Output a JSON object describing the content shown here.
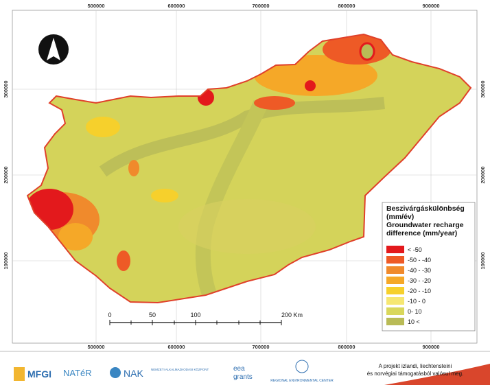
{
  "map": {
    "x_labels": [
      500000,
      600000,
      700000,
      800000,
      900000
    ],
    "y_labels": [
      300000,
      200000,
      100000
    ],
    "legend": {
      "title": [
        "Beszivárgáskülönbség",
        "(mm/év)",
        "Groundwater recharge",
        "difference (mm/year)"
      ],
      "items": [
        {
          "label": "< -50",
          "color": "#e3191c"
        },
        {
          "label": "-50 - -40",
          "color": "#ee5a26"
        },
        {
          "label": "-40 - -30",
          "color": "#f08a2c"
        },
        {
          "label": "-30 - -20",
          "color": "#f5a828"
        },
        {
          "label": "-20 - -10",
          "color": "#f6d02c"
        },
        {
          "label": "-10 - 0",
          "color": "#f6e772"
        },
        {
          "label": "0- 10",
          "color": "#d9d75b"
        },
        {
          "label": "10 <",
          "color": "#b9bb56"
        }
      ]
    },
    "scale": {
      "labels": [
        "0",
        "50",
        "100",
        "200 Km"
      ]
    }
  },
  "footer": {
    "logos": [
      "MFGI",
      "NATéR",
      "NAK",
      "NEMZETI ALKALMAZKODÁSI KÖZPONT",
      "eea",
      "grants",
      "REGIONAL ENVIRONMENTAL CENTER"
    ],
    "note": [
      "A projekt izlandi, liechtensteini",
      "és norvégiai támogatásból valósul meg."
    ]
  }
}
